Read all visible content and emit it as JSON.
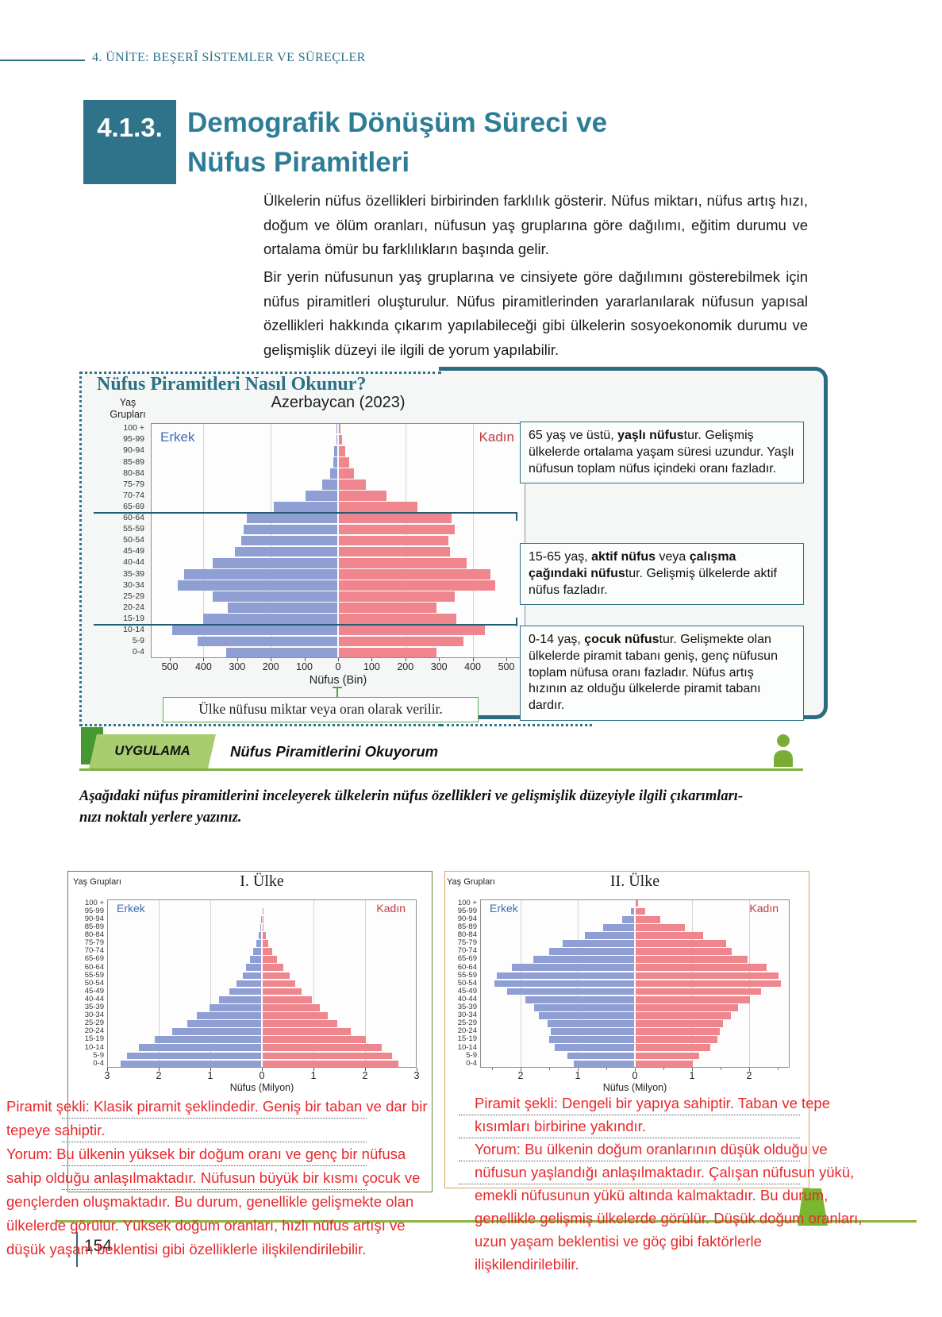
{
  "header": {
    "unit": "4. ÜNİTE: BEŞERÎ SİSTEMLER VE SÜREÇLER"
  },
  "section": {
    "number": "4.1.3.",
    "title_line1": "Demografik Dönüşüm Süreci ve",
    "title_line2": "Nüfus Piramitleri"
  },
  "intro": {
    "paragraph1": "Ülkelerin nüfus özellikleri birbirinden farklılık gösterir. Nüfus miktarı, nüfus artış hızı, doğum ve ölüm oranları, nüfusun yaş gruplarına göre dağılımı, eğitim durumu ve ortalama ömür bu farklılıkların başında gelir.",
    "paragraph2": "Bir yerin nüfusunun yaş gruplarına ve cinsiyete göre dağılımını gösterebilmek için nüfus piramitleri oluşturulur. Nüfus piramitlerinden yararlanılarak nüfusun yapısal özellikleri hakkında çıkarım yapılabileceği gibi ülkelerin sosyoekonomik durumu ve gelişmişlik düzeyi ile ilgili de yorum yapılabilir."
  },
  "howto": {
    "title": "Nüfus Piramitleri Nasıl Okunur?",
    "note": "Ülke nüfusu miktar veya oran olarak verilir.",
    "info_boxes": [
      {
        "segments": [
          {
            "t": "65 yaş ve üstü, "
          },
          {
            "t": "yaşlı nüfus",
            "b": 1
          },
          {
            "t": "tur. Gelişmiş ülkelerde ortalama yaşam süresi uzundur. Yaşlı nüfusun toplam nüfus içindeki oranı fazladır."
          }
        ]
      },
      {
        "segments": [
          {
            "t": "15-65 yaş, "
          },
          {
            "t": "aktif nüfus",
            "b": 1
          },
          {
            "t": " veya "
          },
          {
            "t": "çalışma çağındaki nüfus",
            "b": 1
          },
          {
            "t": "tur. Gelişmiş ülkelerde aktif nüfus fazladır."
          }
        ]
      },
      {
        "segments": [
          {
            "t": "0-14 yaş, "
          },
          {
            "t": "çocuk nüfus",
            "b": 1
          },
          {
            "t": "tur. Gelişmekte olan ülkelerde piramit tabanı geniş, genç nüfusun toplam nüfusa oranı fazladır. Nüfus artış hızının az olduğu ülkelerde piramit tabanı dardır."
          }
        ]
      }
    ]
  },
  "uygulama": {
    "badge": "UYGULAMA",
    "title": "Nüfus Piramitlerini Okuyorum",
    "instruction_lines": [
      "Aşağıdaki nüfus piramitlerini inceleyerek ülkelerin nüfus özellikleri ve gelişmişlik düzeyiyle ilgili çıkarımları-",
      "nızı noktalı yerlere yazınız."
    ]
  },
  "answers": {
    "left": {
      "lines": [
        "Piramit şekli: Klasik piramit şeklindedir. Geniş bir taban ve dar bir",
        "tepeye sahiptir.",
        "Yorum: Bu ülkenin yüksek bir doğum oranı ve genç bir nüfusa",
        "sahip olduğu anlaşılmaktadır. Nüfusun büyük bir kısmı çocuk ve",
        "gençlerden oluşmaktadır. Bu durum, genellikle gelişmekte olan",
        "ülkelerde görülür. Yüksek doğum oranları, hızlı nüfus artışı ve",
        "düşük yaşam beklentisi gibi özelliklerle ilişkilendirilebilir."
      ]
    },
    "right": {
      "lines": [
        "Piramit şekli: Dengeli bir yapıya sahiptir. Taban ve tepe",
        "kısımları birbirine yakındır.",
        "Yorum: Bu ülkenin doğum oranlarının düşük olduğu ve",
        "nüfusun yaşlandığı anlaşılmaktadır. Çalışan nüfusun yükü,",
        "emekli nüfusunun yükü altında kalmaktadır. Bu durum,",
        "genellikle gelişmiş ülkelerde görülür. Düşük doğum oranları,",
        "uzun yaşam beklentisi ve göç gibi faktörlerle",
        "ilişkilendirilebilir."
      ]
    }
  },
  "footer": {
    "page_number": "154"
  },
  "colors": {
    "teal": "#2d7089",
    "male_bar": "#8f9fd4",
    "female_bar": "#ef858d",
    "male_label": "#3f6cb8",
    "female_label": "#c03a3f",
    "handwriting": "#e8282c",
    "green_accent": "#7fb13e"
  },
  "chart_data": [
    {
      "id": "az",
      "type": "bar",
      "subtype": "population-pyramid",
      "title": "Azerbaycan (2023)",
      "xlabel": "Nüfus (Bin)",
      "yaxis_label": "Yaş Grupları",
      "left_series_label": "Erkek",
      "right_series_label": "Kadın",
      "age_groups": [
        "100 +",
        "95-99",
        "90-94",
        "85-89",
        "80-84",
        "75-79",
        "70-74",
        "65-69",
        "60-64",
        "55-59",
        "50-54",
        "45-49",
        "40-44",
        "35-39",
        "30-34",
        "25-29",
        "20-24",
        "15-19",
        "10-14",
        "5-9",
        "0-4"
      ],
      "series": [
        {
          "name": "Erkek",
          "values": [
            2,
            4,
            9,
            13,
            22,
            45,
            95,
            190,
            270,
            280,
            285,
            305,
            370,
            455,
            475,
            370,
            325,
            400,
            490,
            415,
            330
          ]
        },
        {
          "name": "Kadın",
          "values": [
            5,
            9,
            20,
            32,
            46,
            80,
            143,
            235,
            335,
            345,
            325,
            330,
            380,
            450,
            465,
            345,
            290,
            350,
            435,
            370,
            290
          ]
        }
      ],
      "x_ticks": [
        "500",
        "400",
        "300",
        "200",
        "100",
        "0",
        "100",
        "200",
        "300",
        "400",
        "500"
      ],
      "xlim_per_side": 500,
      "age_cut_lines": [
        65,
        15
      ]
    },
    {
      "id": "c1",
      "type": "bar",
      "subtype": "population-pyramid",
      "title": "I. Ülke",
      "xlabel": "Nüfus (Milyon)",
      "yaxis_label": "Yaş Grupları",
      "left_series_label": "Erkek",
      "right_series_label": "Kadın",
      "age_groups": [
        "100 +",
        "95-99",
        "90-94",
        "85-89",
        "80-84",
        "75-79",
        "70-74",
        "65-69",
        "60-64",
        "55-59",
        "50-54",
        "45-49",
        "40-44",
        "35-39",
        "30-34",
        "25-29",
        "20-24",
        "15-19",
        "10-14",
        "5-9",
        "0-4"
      ],
      "series": [
        {
          "name": "Erkek",
          "values": [
            0,
            0,
            0.01,
            0.02,
            0.05,
            0.1,
            0.16,
            0.22,
            0.3,
            0.36,
            0.48,
            0.62,
            0.82,
            1.0,
            1.25,
            1.43,
            1.72,
            2.06,
            2.38,
            2.6,
            2.73
          ]
        },
        {
          "name": "Kadın",
          "values": [
            0,
            0.01,
            0.01,
            0.02,
            0.06,
            0.11,
            0.19,
            0.28,
            0.4,
            0.52,
            0.63,
            0.76,
            0.95,
            1.11,
            1.27,
            1.45,
            1.71,
            2.0,
            2.31,
            2.51,
            2.63
          ]
        }
      ],
      "x_ticks": [
        "3",
        "2",
        "1",
        "0",
        "1",
        "2",
        "3"
      ],
      "xlim_per_side": 3
    },
    {
      "id": "c2",
      "type": "bar",
      "subtype": "population-pyramid",
      "title": "II. Ülke",
      "xlabel": "Nüfus (Milyon)",
      "yaxis_label": "Yaş Grupları",
      "left_series_label": "Erkek",
      "right_series_label": "Kadın",
      "age_groups": [
        "100 +",
        "95-99",
        "90-94",
        "85-89",
        "80-84",
        "75-79",
        "70-74",
        "65-69",
        "60-64",
        "55-59",
        "50-54",
        "45-49",
        "40-44",
        "35-39",
        "30-34",
        "25-29",
        "20-24",
        "15-19",
        "10-14",
        "5-9",
        "0-4"
      ],
      "series": [
        {
          "name": "Erkek",
          "values": [
            0,
            0.06,
            0.21,
            0.55,
            0.87,
            1.26,
            1.49,
            1.77,
            2.14,
            2.41,
            2.45,
            2.22,
            1.91,
            1.75,
            1.67,
            1.52,
            1.46,
            1.49,
            1.39,
            1.17,
            1.06
          ]
        },
        {
          "name": "Kadın",
          "values": [
            0.04,
            0.17,
            0.44,
            0.87,
            1.19,
            1.58,
            1.69,
            1.96,
            2.3,
            2.51,
            2.55,
            2.2,
            2.0,
            1.8,
            1.67,
            1.53,
            1.48,
            1.44,
            1.31,
            1.12,
            1.0
          ]
        }
      ],
      "x_ticks": [
        "2",
        "1",
        "0",
        "1",
        "2"
      ],
      "xlim_per_side": 2.7
    }
  ]
}
